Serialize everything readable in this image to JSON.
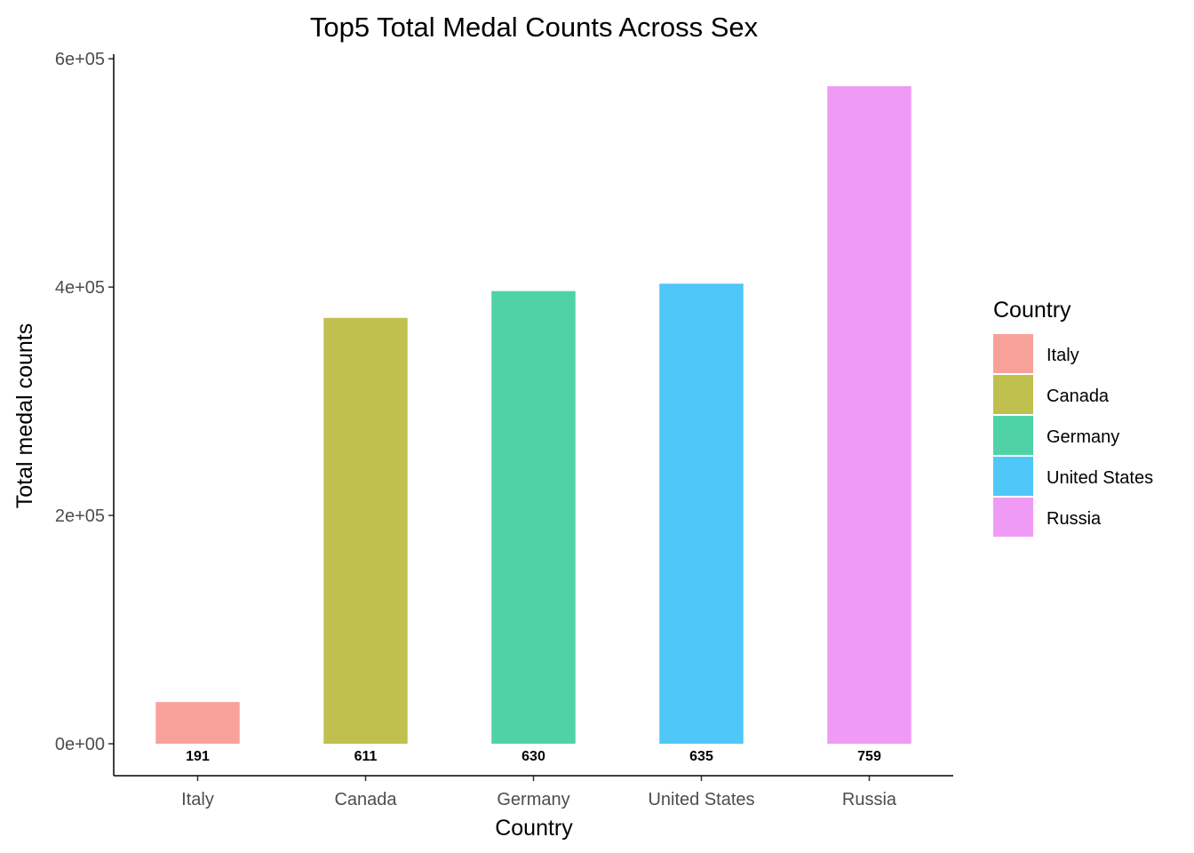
{
  "chart_data": {
    "type": "bar",
    "title": "Top5 Total Medal Counts Across Sex",
    "xlabel": "Country",
    "ylabel": "Total medal counts",
    "categories": [
      "Italy",
      "Canada",
      "Germany",
      "United States",
      "Russia"
    ],
    "values": [
      36500,
      373000,
      396500,
      403000,
      576000
    ],
    "data_labels": [
      "191",
      "611",
      "630",
      "635",
      "759"
    ],
    "colors": [
      "#F8A19B",
      "#C0C04F",
      "#4FD3A6",
      "#4FC7F8",
      "#EF9BF5"
    ],
    "ylim": [
      -28000,
      604000
    ],
    "y_ticks": [
      0,
      200000,
      400000,
      600000
    ],
    "y_tick_labels": [
      "0e+00",
      "2e+05",
      "4e+05",
      "6e+05"
    ],
    "grid": false,
    "legend": {
      "title": "Country",
      "placement": "right",
      "entries": [
        "Italy",
        "Canada",
        "Germany",
        "United States",
        "Russia"
      ]
    }
  }
}
